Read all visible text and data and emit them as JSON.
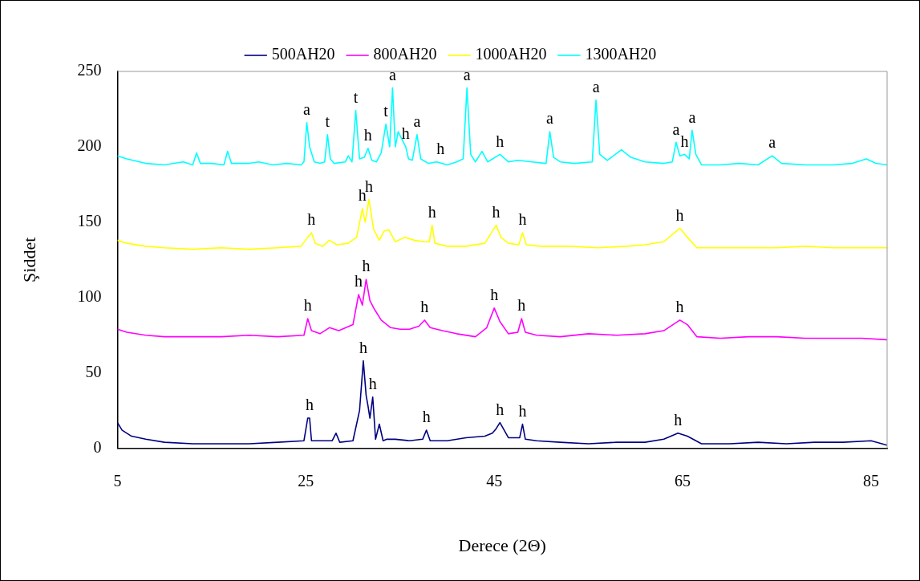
{
  "chart_data": {
    "type": "line",
    "xlabel": "Derece (2Θ)",
    "ylabel": "Şiddet",
    "xlim": [
      5,
      86.7
    ],
    "xticks": [
      5,
      25,
      45,
      65,
      85
    ],
    "ylim": [
      0,
      250
    ],
    "yticks": [
      0,
      50,
      100,
      150,
      200,
      250
    ],
    "grid": false,
    "legend": "top",
    "marker": "none",
    "line_style": "solid",
    "series": [
      {
        "name": "500AH20",
        "color": "#000080",
        "x": [
          5,
          5.5,
          6.5,
          8,
          10,
          13,
          16,
          19,
          22,
          24.8,
          25.2,
          25.4,
          25.6,
          26.5,
          27.8,
          28.2,
          28.6,
          30.0,
          30.7,
          31.1,
          31.4,
          31.6,
          31.8,
          32.1,
          32.4,
          32.8,
          33.2,
          33.6,
          34.5,
          36,
          37.4,
          37.8,
          38.2,
          40,
          42,
          44,
          44.8,
          45.2,
          45.6,
          46.5,
          47.7,
          48.0,
          48.3,
          49.5,
          52,
          55,
          58,
          61,
          63,
          64.5,
          65.5,
          67,
          70,
          73,
          76,
          79,
          82,
          85,
          86.7
        ],
        "values": [
          17,
          12,
          8,
          6,
          4,
          3,
          3,
          3,
          4,
          5,
          20,
          20,
          5,
          5,
          5,
          10,
          4,
          5,
          25,
          58,
          35,
          28,
          20,
          34,
          6,
          16,
          5,
          6,
          6,
          5,
          6,
          12,
          5,
          5,
          7,
          8,
          10,
          13,
          17,
          7,
          7,
          16,
          6,
          5,
          4,
          3,
          4,
          4,
          6,
          10,
          8,
          3,
          3,
          4,
          3,
          4,
          4,
          5,
          2
        ]
      },
      {
        "name": "800AH20",
        "color": "#ff00ff",
        "x": [
          5,
          6,
          8,
          10,
          13,
          16,
          19,
          22,
          24.8,
          25.2,
          25.6,
          26.5,
          27.5,
          28.5,
          30.0,
          30.6,
          31.0,
          31.4,
          31.8,
          32.3,
          33,
          34,
          35,
          36,
          37.0,
          37.6,
          38.2,
          39.5,
          41,
          43,
          44.2,
          45.0,
          45.6,
          46.5,
          47.5,
          47.9,
          48.3,
          49.5,
          52,
          55,
          58,
          61,
          63,
          64.7,
          65.5,
          66.5,
          69,
          72,
          75,
          78,
          81,
          84,
          86.7
        ],
        "values": [
          79,
          77,
          75,
          74,
          74,
          74,
          75,
          74,
          75,
          86,
          78,
          76,
          80,
          78,
          82,
          102,
          95,
          112,
          98,
          92,
          85,
          80,
          79,
          79,
          81,
          85,
          80,
          78,
          76,
          74,
          80,
          93,
          84,
          76,
          77,
          86,
          77,
          75,
          74,
          76,
          75,
          76,
          78,
          85,
          82,
          74,
          73,
          74,
          74,
          73,
          73,
          73,
          72
        ]
      },
      {
        "name": "1000AH20",
        "color": "#ffff00",
        "x": [
          5,
          6,
          8,
          10,
          13,
          16,
          19,
          22,
          24.5,
          25.2,
          25.6,
          26.0,
          26.8,
          27.5,
          28.3,
          29.5,
          30.4,
          31.0,
          31.3,
          31.7,
          32.2,
          32.8,
          33.3,
          33.8,
          34.5,
          35.5,
          36.5,
          37.5,
          38.1,
          38.4,
          38.7,
          40,
          42,
          44,
          45.2,
          45.7,
          46.5,
          47.6,
          48.0,
          48.4,
          50,
          53,
          56,
          59,
          61,
          63,
          64.7,
          65.5,
          66.5,
          69,
          72,
          75,
          78,
          81,
          84,
          86.7
        ],
        "values": [
          138,
          136,
          134,
          133,
          132,
          133,
          132,
          133,
          134,
          140,
          143,
          136,
          134,
          138,
          135,
          136,
          140,
          159,
          150,
          165,
          145,
          138,
          144,
          145,
          137,
          140,
          138,
          137,
          137,
          148,
          136,
          134,
          134,
          136,
          148,
          140,
          136,
          135,
          143,
          135,
          134,
          134,
          133,
          134,
          135,
          137,
          146,
          140,
          133,
          133,
          133,
          133,
          134,
          133,
          133,
          133
        ]
      },
      {
        "name": "1300AH20",
        "color": "#00ffff",
        "x": [
          5,
          6,
          8,
          10,
          11,
          12,
          13,
          13.4,
          13.8,
          15,
          16.3,
          16.7,
          17.1,
          19,
          20,
          21.5,
          23,
          24.5,
          24.8,
          25.1,
          25.4,
          25.9,
          26.5,
          27.0,
          27.3,
          27.6,
          28,
          29.2,
          29.5,
          29.9,
          30.3,
          30.7,
          31.2,
          31.6,
          32.0,
          32.5,
          33.0,
          33.5,
          33.9,
          34.2,
          34.5,
          34.8,
          35.6,
          35.9,
          36.3,
          36.8,
          37.2,
          38,
          38.9,
          40,
          41,
          41.7,
          42.1,
          42.5,
          43.0,
          43.7,
          44.3,
          45.6,
          46.5,
          47.5,
          49,
          50.5,
          50.9,
          51.3,
          52,
          53.5,
          55.4,
          55.8,
          56.2,
          57,
          58.5,
          59.5,
          61,
          63,
          63.9,
          64.3,
          64.7,
          65.2,
          65.7,
          66.0,
          66.4,
          67,
          69,
          71,
          73,
          74.5,
          75.5,
          78,
          81,
          83,
          84.5,
          85.5,
          86.7
        ],
        "values": [
          194,
          192,
          189,
          188,
          189,
          190,
          188,
          196,
          189,
          189,
          188,
          197,
          189,
          189,
          190,
          188,
          189,
          188,
          190,
          216,
          200,
          190,
          189,
          190,
          208,
          192,
          189,
          190,
          194,
          190,
          224,
          192,
          193,
          199,
          191,
          190,
          196,
          215,
          200,
          239,
          200,
          210,
          200,
          192,
          191,
          208,
          192,
          189,
          190,
          188,
          190,
          192,
          239,
          195,
          190,
          197,
          190,
          195,
          190,
          191,
          190,
          189,
          210,
          193,
          190,
          189,
          190,
          231,
          195,
          191,
          198,
          193,
          190,
          189,
          190,
          203,
          194,
          195,
          192,
          211,
          195,
          188,
          188,
          189,
          188,
          194,
          189,
          188,
          188,
          189,
          192,
          189,
          188
        ]
      }
    ],
    "annotations": [
      {
        "text": "a",
        "x": 25.1,
        "y": 216
      },
      {
        "text": "t",
        "x": 27.3,
        "y": 208
      },
      {
        "text": "t",
        "x": 30.3,
        "y": 224
      },
      {
        "text": "h",
        "x": 31.6,
        "y": 199
      },
      {
        "text": "t",
        "x": 33.5,
        "y": 215
      },
      {
        "text": "a",
        "x": 34.2,
        "y": 239
      },
      {
        "text": "h",
        "x": 35.6,
        "y": 200
      },
      {
        "text": "a",
        "x": 36.8,
        "y": 208
      },
      {
        "text": "h",
        "x": 39.3,
        "y": 190
      },
      {
        "text": "a",
        "x": 42.1,
        "y": 239
      },
      {
        "text": "h",
        "x": 45.6,
        "y": 195
      },
      {
        "text": "a",
        "x": 50.9,
        "y": 210
      },
      {
        "text": "a",
        "x": 55.8,
        "y": 231
      },
      {
        "text": "a",
        "x": 64.3,
        "y": 203
      },
      {
        "text": "h",
        "x": 65.2,
        "y": 195
      },
      {
        "text": "a",
        "x": 66.0,
        "y": 211
      },
      {
        "text": "a",
        "x": 74.5,
        "y": 194
      },
      {
        "text": "h",
        "x": 25.6,
        "y": 143
      },
      {
        "text": "h",
        "x": 31.0,
        "y": 159
      },
      {
        "text": "h",
        "x": 31.7,
        "y": 165
      },
      {
        "text": "h",
        "x": 38.4,
        "y": 148
      },
      {
        "text": "h",
        "x": 45.2,
        "y": 148
      },
      {
        "text": "h",
        "x": 48.0,
        "y": 143
      },
      {
        "text": "h",
        "x": 64.7,
        "y": 146
      },
      {
        "text": "h",
        "x": 25.2,
        "y": 86
      },
      {
        "text": "h",
        "x": 30.6,
        "y": 102
      },
      {
        "text": "h",
        "x": 31.4,
        "y": 112
      },
      {
        "text": "h",
        "x": 37.6,
        "y": 85
      },
      {
        "text": "h",
        "x": 45.0,
        "y": 93
      },
      {
        "text": "h",
        "x": 47.9,
        "y": 86
      },
      {
        "text": "h",
        "x": 64.7,
        "y": 85
      },
      {
        "text": "h",
        "x": 25.4,
        "y": 20
      },
      {
        "text": "h",
        "x": 31.1,
        "y": 58
      },
      {
        "text": "h",
        "x": 32.1,
        "y": 34
      },
      {
        "text": "h",
        "x": 37.8,
        "y": 12
      },
      {
        "text": "h",
        "x": 45.6,
        "y": 17
      },
      {
        "text": "h",
        "x": 48.0,
        "y": 16
      },
      {
        "text": "h",
        "x": 64.5,
        "y": 10
      }
    ]
  }
}
